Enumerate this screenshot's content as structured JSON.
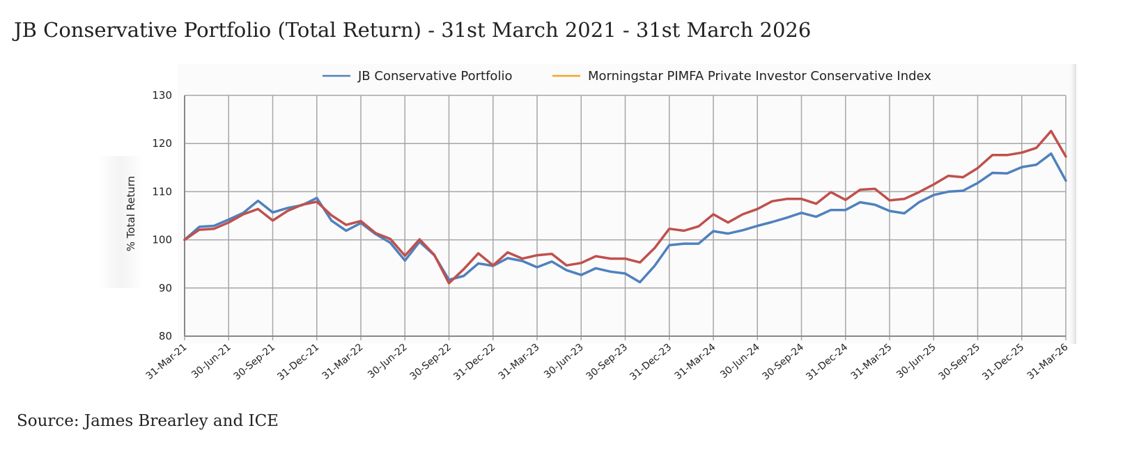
{
  "title": "JB Conservative Portfolio (Total Return) - 31st March 2021 - 31st March 2026",
  "source": "Source: James Brearley and ICE",
  "colors": {
    "portfolio": "#4f81bd",
    "index_line": "#c0504d",
    "index_legend": "#f5a623",
    "grid": "#a6a6a6"
  },
  "chart_data": {
    "type": "line",
    "title": "",
    "xlabel": "",
    "ylabel": "% Total Return",
    "ylim": [
      80,
      130
    ],
    "yticks": [
      80,
      90,
      100,
      110,
      120,
      130
    ],
    "grid": true,
    "legend_position": "top",
    "x_tick_labels": [
      "31-Mar-21",
      "30-Jun-21",
      "30-Sep-21",
      "31-Dec-21",
      "31-Mar-22",
      "30-Jun-22",
      "30-Sep-22",
      "31-Dec-22",
      "31-Mar-23",
      "30-Jun-23",
      "30-Sep-23",
      "31-Dec-23",
      "31-Mar-24",
      "30-Jun-24",
      "30-Sep-24",
      "31-Dec-24",
      "31-Mar-25",
      "30-Jun-25",
      "30-Sep-25",
      "31-Dec-25",
      "31-Mar-26"
    ],
    "x": [
      "Mar-21",
      "Apr-21",
      "May-21",
      "Jun-21",
      "Jul-21",
      "Aug-21",
      "Sep-21",
      "Oct-21",
      "Nov-21",
      "Dec-21",
      "Jan-22",
      "Feb-22",
      "Mar-22",
      "Apr-22",
      "May-22",
      "Jun-22",
      "Jul-22",
      "Aug-22",
      "Sep-22",
      "Oct-22",
      "Nov-22",
      "Dec-22",
      "Jan-23",
      "Feb-23",
      "Mar-23",
      "Apr-23",
      "May-23",
      "Jun-23",
      "Jul-23",
      "Aug-23",
      "Sep-23",
      "Oct-23",
      "Nov-23",
      "Dec-23",
      "Jan-24",
      "Feb-24",
      "Mar-24",
      "Apr-24",
      "May-24",
      "Jun-24",
      "Jul-24",
      "Aug-24",
      "Sep-24",
      "Oct-24",
      "Nov-24",
      "Dec-24",
      "Jan-25",
      "Feb-25",
      "Mar-25",
      "Apr-25",
      "May-25",
      "Jun-25",
      "Jul-25",
      "Aug-25",
      "Sep-25",
      "Oct-25",
      "Nov-25",
      "Dec-25",
      "Jan-26",
      "Feb-26",
      "Mar-26"
    ],
    "series": [
      {
        "name": "JB Conservative Portfolio",
        "values": [
          100.0,
          102.7,
          102.9,
          104.2,
          105.6,
          108.1,
          105.7,
          106.6,
          107.2,
          108.7,
          104.0,
          101.9,
          103.5,
          101.2,
          99.4,
          95.7,
          99.6,
          96.8,
          91.7,
          92.5,
          95.1,
          94.6,
          96.2,
          95.6,
          94.3,
          95.5,
          93.7,
          92.7,
          94.1,
          93.4,
          93.0,
          91.2,
          94.6,
          98.9,
          99.2,
          99.2,
          101.8,
          101.3,
          102.0,
          102.9,
          103.7,
          104.6,
          105.6,
          104.8,
          106.2,
          106.2,
          107.8,
          107.3,
          106.0,
          105.5,
          107.8,
          109.3,
          110.0,
          110.2,
          111.8,
          113.9,
          113.8,
          115.1,
          115.6,
          117.9,
          112.3
        ]
      },
      {
        "name": "Morningstar PIMFA Private Investor Conservative Index",
        "values": [
          100.0,
          102.1,
          102.3,
          103.6,
          105.3,
          106.4,
          104.0,
          106.0,
          107.3,
          107.9,
          105.1,
          103.1,
          103.9,
          101.4,
          100.2,
          96.7,
          100.1,
          96.9,
          91.0,
          93.9,
          97.2,
          94.7,
          97.4,
          96.1,
          96.8,
          97.1,
          94.7,
          95.2,
          96.6,
          96.1,
          96.1,
          95.3,
          98.3,
          102.3,
          101.9,
          102.8,
          105.3,
          103.6,
          105.3,
          106.4,
          108.0,
          108.5,
          108.5,
          107.5,
          109.9,
          108.3,
          110.4,
          110.6,
          108.2,
          108.5,
          109.9,
          111.5,
          113.3,
          113.0,
          114.9,
          117.6,
          117.6,
          118.1,
          119.1,
          122.6,
          117.3
        ]
      }
    ]
  }
}
